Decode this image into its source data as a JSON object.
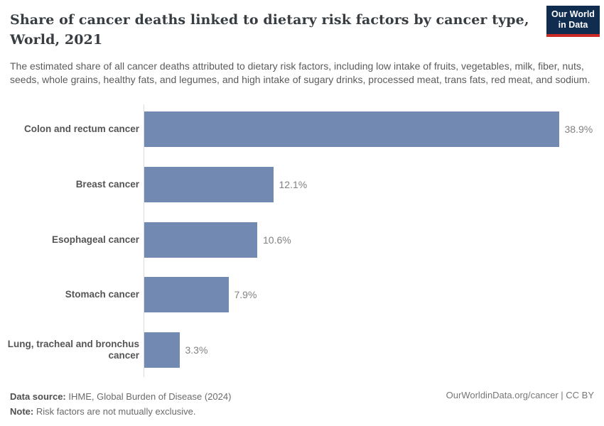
{
  "header": {
    "title_line1": "Share of cancer deaths linked to dietary risk factors by cancer type,",
    "title_line2": "World, 2021",
    "subtitle": "The estimated share of all cancer deaths attributed to dietary risk factors, including low intake of fruits, vegetables, milk, fiber, nuts, seeds, whole grains, healthy fats, and legumes, and high intake of sugary drinks, processed meat, trans fats, red meat, and sodium.",
    "logo": {
      "line1": "Our World",
      "line2": "in Data",
      "bg_color": "#102d50",
      "accent_color": "#cc2a24"
    }
  },
  "chart_data": {
    "type": "bar",
    "orientation": "horizontal",
    "title": "Share of cancer deaths linked to dietary risk factors by cancer type, World, 2021",
    "categories": [
      "Colon and rectum cancer",
      "Breast cancer",
      "Esophageal cancer",
      "Stomach cancer",
      "Lung, tracheal and bronchus cancer"
    ],
    "values": [
      38.9,
      12.1,
      10.6,
      7.9,
      3.3
    ],
    "value_labels": [
      "38.9%",
      "12.1%",
      "10.6%",
      "7.9%",
      "3.3%"
    ],
    "unit": "%",
    "xlim": [
      0,
      40
    ],
    "bar_color": "#7289b2",
    "grid": false,
    "legend": "none"
  },
  "footer": {
    "source_label": "Data source:",
    "source_text": " IHME, Global Burden of Disease (2024)",
    "note_label": "Note:",
    "note_text": " Risk factors are not mutually exclusive.",
    "credit": "OurWorldinData.org/cancer | CC BY"
  }
}
